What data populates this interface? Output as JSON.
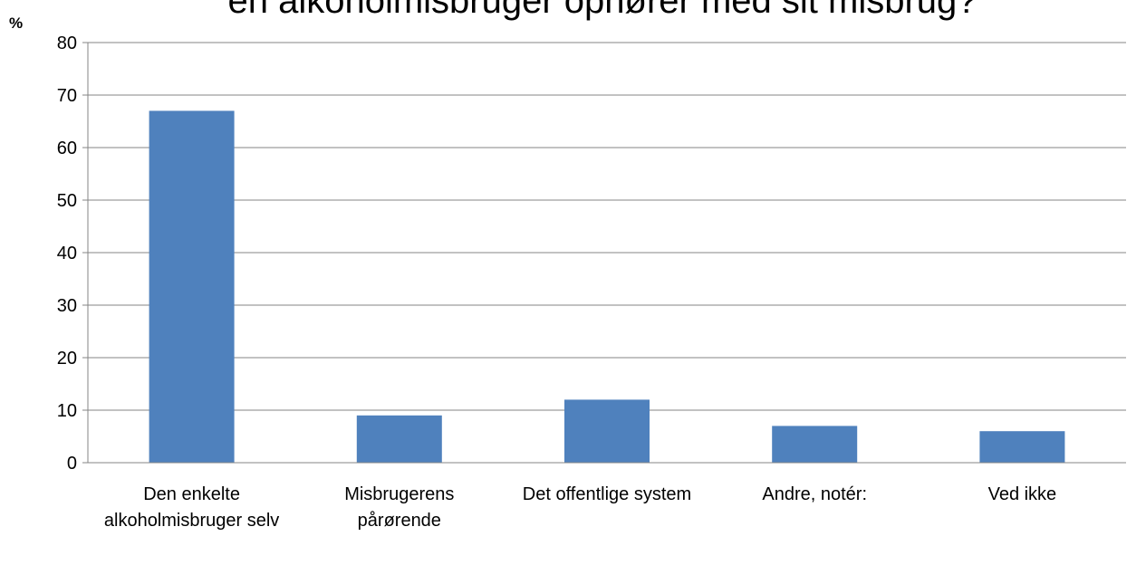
{
  "chart_data": {
    "type": "bar",
    "title": "en alkoholmisbruger ophører med sit misbrug?",
    "y_label": "%",
    "categories": [
      "Den enkelte alkoholmisbruger selv",
      "Misbrugerens pårørende",
      "Det offentlige system",
      "Andre, notér:",
      "Ved ikke"
    ],
    "values": [
      67,
      9,
      12,
      7,
      6
    ],
    "color": "#4f81bd",
    "ylim": [
      0,
      80
    ],
    "yticks": [
      0,
      10,
      20,
      30,
      40,
      50,
      60,
      70,
      80
    ],
    "grid": true
  }
}
